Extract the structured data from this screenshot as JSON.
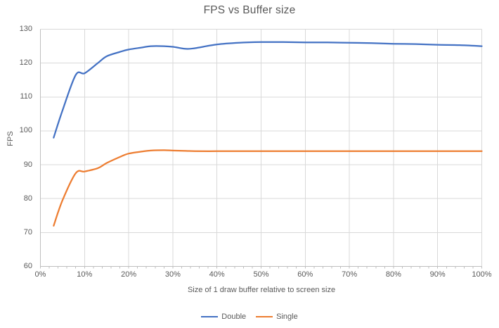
{
  "chart_data": {
    "type": "line",
    "title": "FPS vs Buffer size",
    "xlabel": "Size of 1 draw buffer relative to screen size",
    "ylabel": "FPS",
    "xlim": [
      0,
      100
    ],
    "ylim": [
      60,
      130
    ],
    "x_tick_labels": [
      "0%",
      "10%",
      "20%",
      "30%",
      "40%",
      "50%",
      "60%",
      "70%",
      "80%",
      "90%",
      "100%"
    ],
    "x_tick_positions": [
      0,
      10,
      20,
      30,
      40,
      50,
      60,
      70,
      80,
      90,
      100
    ],
    "x_minor_tick_step": 2,
    "y_ticks": [
      60,
      70,
      80,
      90,
      100,
      110,
      120,
      130
    ],
    "grid": true,
    "smooth_lines": true,
    "legend_position": "bottom",
    "colors": {
      "background": "#FFFFFF",
      "text": "#595959",
      "gridline": "#D9D9D9",
      "axis_line": "#BFBFBF"
    },
    "series": [
      {
        "name": "Double",
        "color": "#4472C4",
        "x": [
          3,
          5,
          8,
          10,
          13,
          15,
          18,
          20,
          23,
          25,
          28,
          30,
          33,
          35,
          40,
          45,
          50,
          55,
          60,
          65,
          70,
          75,
          80,
          85,
          90,
          95,
          100
        ],
        "y": [
          98,
          106,
          116.5,
          117,
          120,
          122,
          123.3,
          124,
          124.6,
          125,
          125,
          124.8,
          124.2,
          124.4,
          125.5,
          126,
          126.2,
          126.2,
          126.1,
          126.1,
          126,
          125.9,
          125.7,
          125.6,
          125.4,
          125.3,
          125
        ]
      },
      {
        "name": "Single",
        "color": "#ED7D31",
        "x": [
          3,
          5,
          8,
          10,
          13,
          15,
          18,
          20,
          23,
          25,
          28,
          30,
          33,
          35,
          40,
          45,
          50,
          55,
          60,
          65,
          70,
          75,
          80,
          85,
          90,
          95,
          100
        ],
        "y": [
          72,
          79.5,
          87.5,
          88,
          89,
          90.5,
          92.3,
          93.3,
          93.9,
          94.2,
          94.3,
          94.2,
          94.1,
          94,
          94,
          94,
          94,
          94,
          94,
          94,
          94,
          94,
          94,
          94,
          94,
          94,
          94
        ]
      }
    ]
  }
}
